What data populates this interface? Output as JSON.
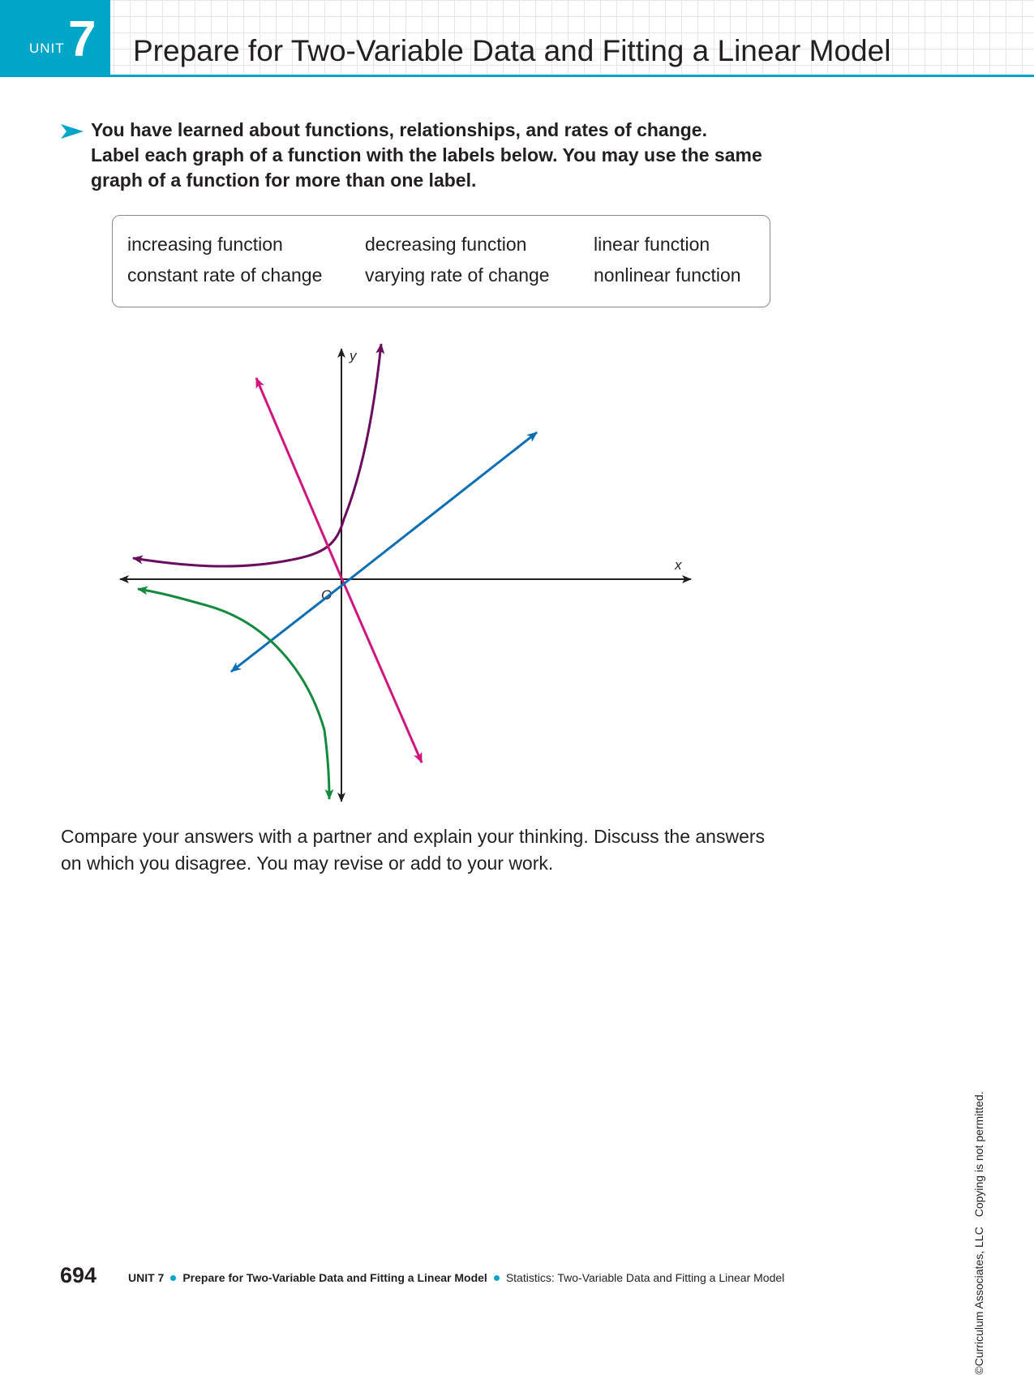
{
  "header": {
    "unit_word": "UNIT",
    "unit_number": "7",
    "title": "Prepare for Two-Variable Data and Fitting a Linear Model"
  },
  "prompt": {
    "lines": [
      "You have learned about functions, relationships, and rates of change.",
      "Label each graph of a function with the labels below. You may use the same",
      "graph of a function for more than one label."
    ]
  },
  "label_box": {
    "labels": [
      "increasing function",
      "decreasing function",
      "linear function",
      "constant rate of change",
      "varying rate of change",
      "nonlinear function"
    ]
  },
  "graph": {
    "x_axis_label": "x",
    "y_axis_label": "y",
    "origin_label": "O",
    "colors": {
      "axes": "#231f20",
      "exponential_curve": "#6b0d5e",
      "decreasing_line": "#d0157e",
      "increasing_line": "#0a6eb4",
      "decreasing_curve": "#138a3e"
    }
  },
  "compare": {
    "lines": [
      "Compare your answers with a partner and explain your thinking. Discuss the answers",
      "on which you disagree. You may revise or add to your work."
    ]
  },
  "copyright": {
    "owner": "©Curriculum Associates, LLC",
    "notice": "Copying is not permitted."
  },
  "footer": {
    "page_number": "694",
    "unit": "UNIT 7",
    "lesson": "Prepare for Two-Variable Data and Fitting a Linear Model",
    "topic": "Statistics: Two-Variable Data and Fitting a Linear Model"
  }
}
